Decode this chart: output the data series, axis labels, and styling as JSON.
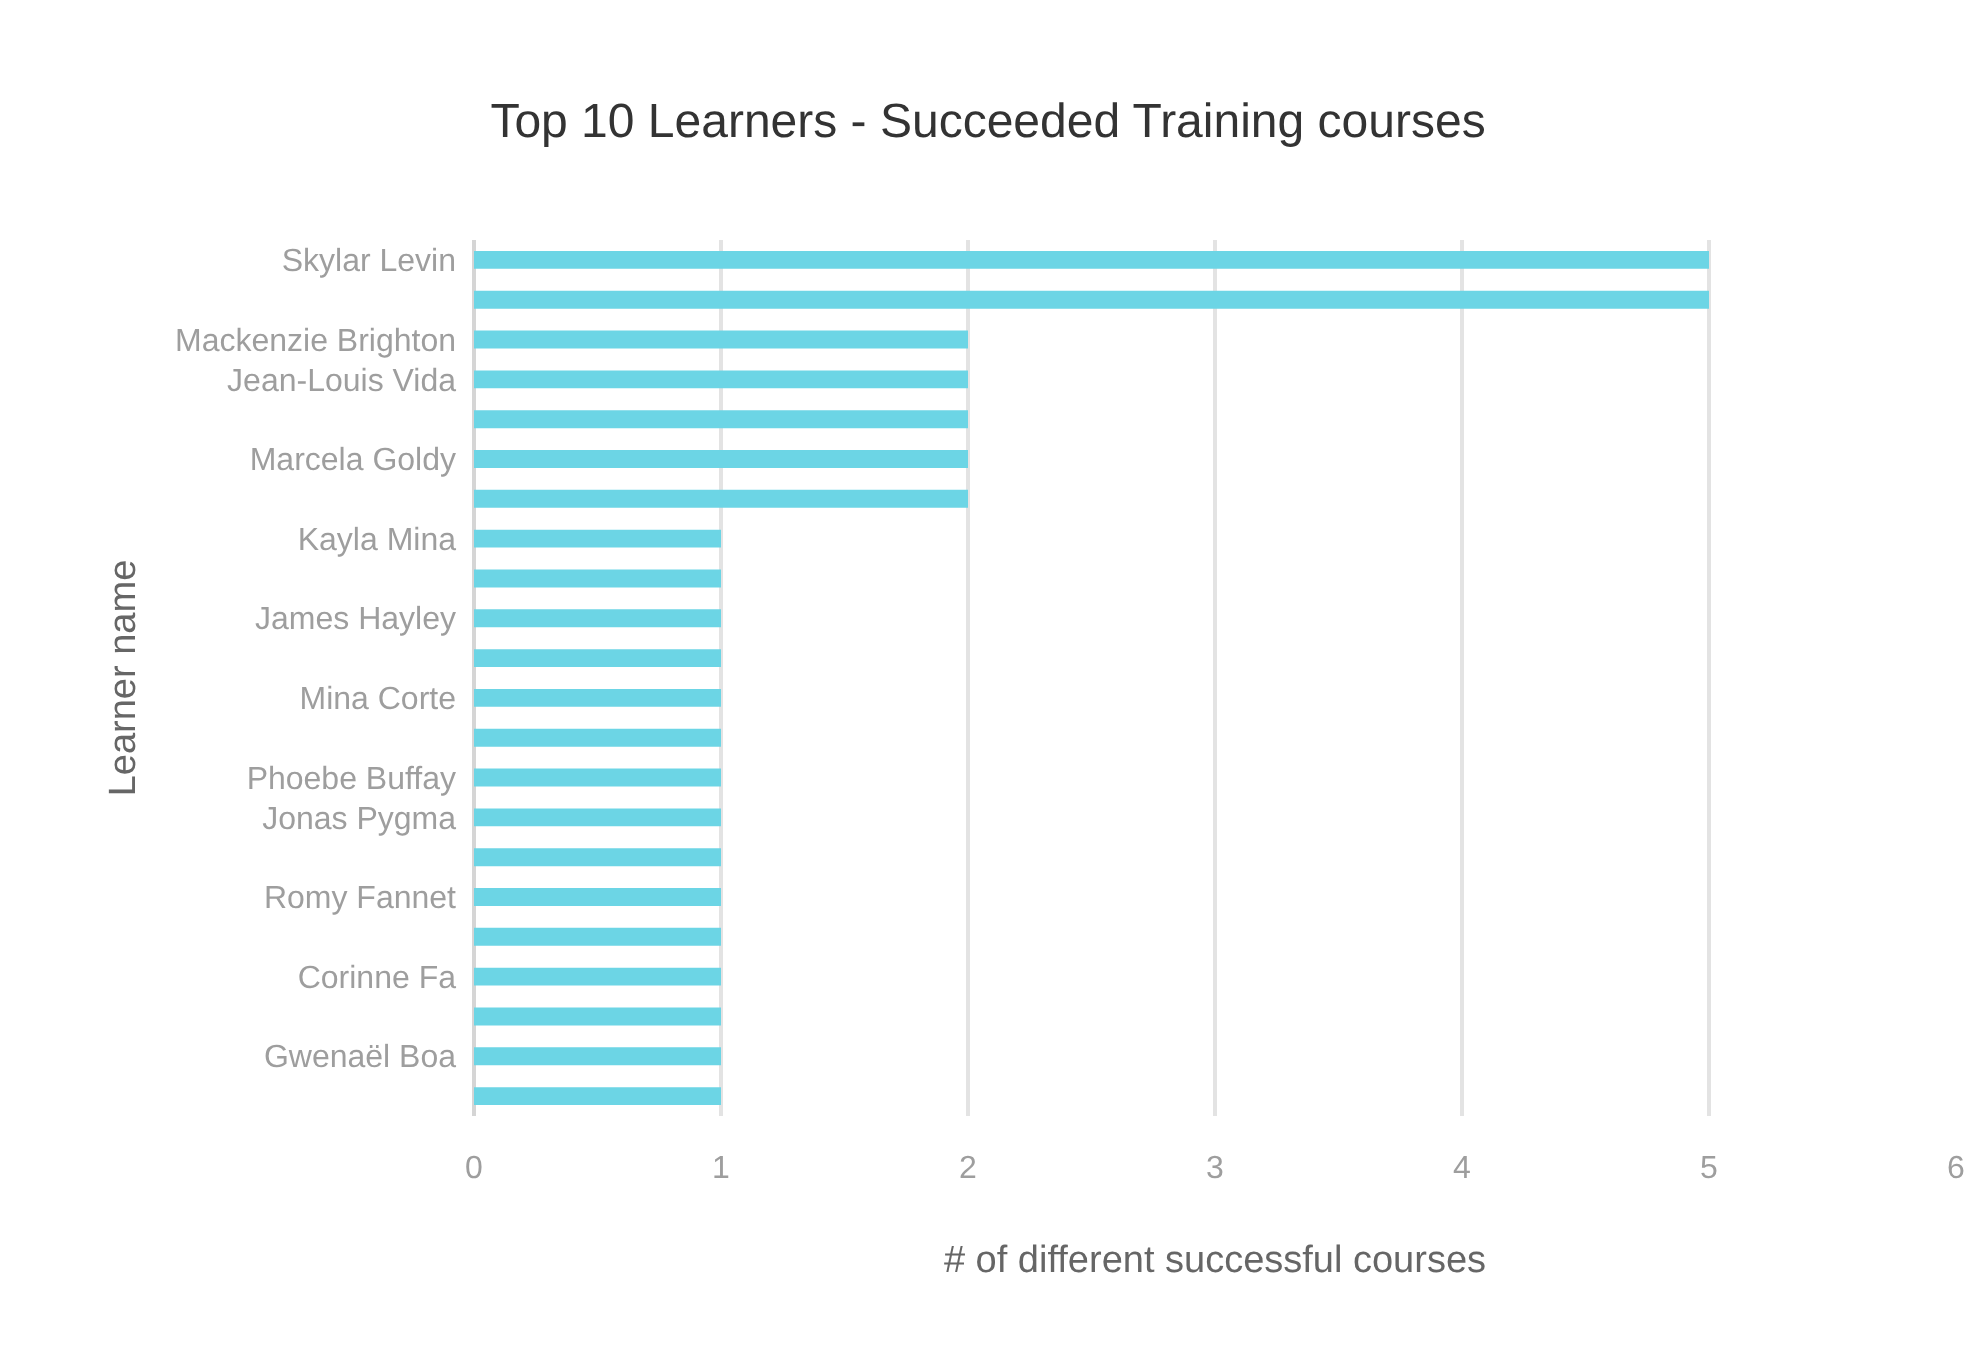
{
  "chart_data": {
    "type": "bar",
    "orientation": "horizontal",
    "title": "Top 10 Learners - Succeeded Training courses",
    "xlabel": "# of different successful courses",
    "ylabel": "Learner name",
    "categories": [
      "Skylar Levin",
      null,
      "Mackenzie Brighton",
      "Jean-Louis Vida",
      null,
      "Marcela Goldy",
      null,
      "Kayla Mina",
      null,
      "James Hayley",
      null,
      "Mina Corte",
      null,
      "Phoebe Buffay",
      "Jonas Pygma",
      null,
      "Romy Fannet",
      null,
      "Corinne Fa",
      null,
      "Gwenaël Boa",
      null
    ],
    "values": [
      5,
      5,
      2,
      2,
      2,
      2,
      2,
      1,
      1,
      1,
      1,
      1,
      1,
      1,
      1,
      1,
      1,
      1,
      1,
      1,
      1,
      1
    ],
    "color": "#6cd5e5",
    "xlim": [
      0,
      6
    ],
    "xticks": [
      0,
      1,
      2,
      3,
      4,
      5,
      6
    ],
    "grid": "x"
  }
}
